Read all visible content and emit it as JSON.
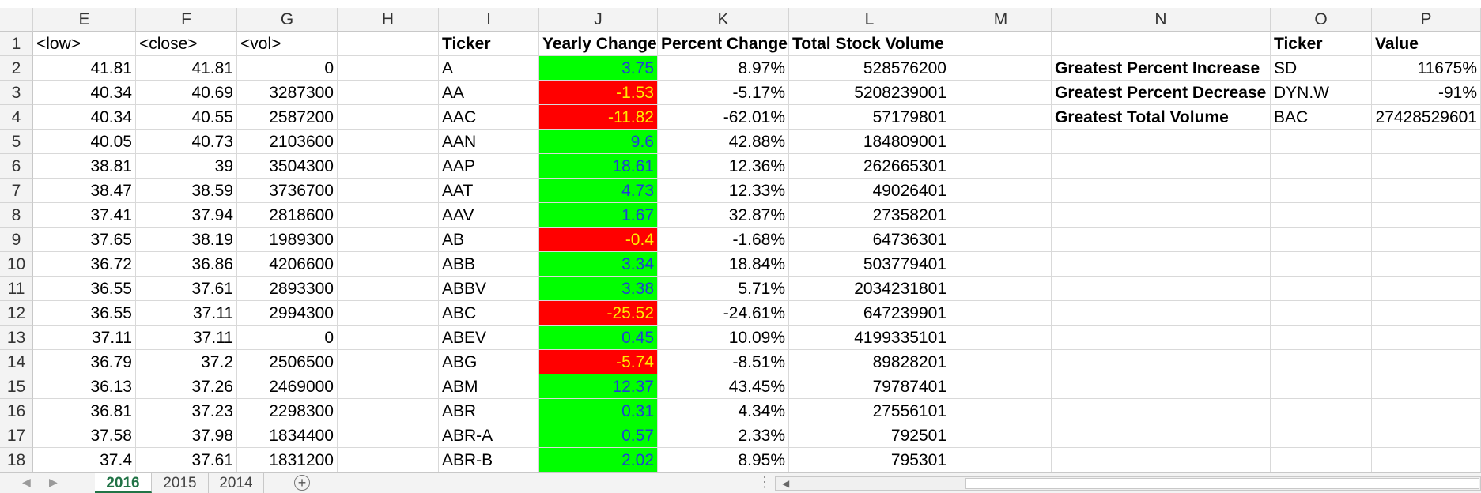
{
  "columns": [
    "E",
    "F",
    "G",
    "H",
    "I",
    "J",
    "K",
    "L",
    "M",
    "N",
    "O",
    "P"
  ],
  "rows": [
    {
      "num": "1",
      "e": "<low>",
      "f": "<close>",
      "g": "<vol>",
      "i": "Ticker",
      "j": "Yearly Change",
      "k": "Percent Change",
      "l": "Total Stock Volume",
      "n": "",
      "o": "Ticker",
      "p": "Value",
      "j_sign": "none"
    },
    {
      "num": "2",
      "e": "41.81",
      "f": "41.81",
      "g": "0",
      "i": "A",
      "j": "3.75",
      "k": "8.97%",
      "l": "528576200",
      "n": "Greatest Percent Increase",
      "o": "SD",
      "p": "11675%",
      "j_sign": "pos"
    },
    {
      "num": "3",
      "e": "40.34",
      "f": "40.69",
      "g": "3287300",
      "i": "AA",
      "j": "-1.53",
      "k": "-5.17%",
      "l": "5208239001",
      "n": "Greatest Percent Decrease",
      "o": "DYN.W",
      "p": "-91%",
      "j_sign": "neg"
    },
    {
      "num": "4",
      "e": "40.34",
      "f": "40.55",
      "g": "2587200",
      "i": "AAC",
      "j": "-11.82",
      "k": "-62.01%",
      "l": "57179801",
      "n": "Greatest Total Volume",
      "o": "BAC",
      "p": "27428529601",
      "j_sign": "neg"
    },
    {
      "num": "5",
      "e": "40.05",
      "f": "40.73",
      "g": "2103600",
      "i": "AAN",
      "j": "9.6",
      "k": "42.88%",
      "l": "184809001",
      "n": "",
      "o": "",
      "p": "",
      "j_sign": "pos"
    },
    {
      "num": "6",
      "e": "38.81",
      "f": "39",
      "g": "3504300",
      "i": "AAP",
      "j": "18.61",
      "k": "12.36%",
      "l": "262665301",
      "n": "",
      "o": "",
      "p": "",
      "j_sign": "pos"
    },
    {
      "num": "7",
      "e": "38.47",
      "f": "38.59",
      "g": "3736700",
      "i": "AAT",
      "j": "4.73",
      "k": "12.33%",
      "l": "49026401",
      "n": "",
      "o": "",
      "p": "",
      "j_sign": "pos"
    },
    {
      "num": "8",
      "e": "37.41",
      "f": "37.94",
      "g": "2818600",
      "i": "AAV",
      "j": "1.67",
      "k": "32.87%",
      "l": "27358201",
      "n": "",
      "o": "",
      "p": "",
      "j_sign": "pos"
    },
    {
      "num": "9",
      "e": "37.65",
      "f": "38.19",
      "g": "1989300",
      "i": "AB",
      "j": "-0.4",
      "k": "-1.68%",
      "l": "64736301",
      "n": "",
      "o": "",
      "p": "",
      "j_sign": "neg"
    },
    {
      "num": "10",
      "e": "36.72",
      "f": "36.86",
      "g": "4206600",
      "i": "ABB",
      "j": "3.34",
      "k": "18.84%",
      "l": "503779401",
      "n": "",
      "o": "",
      "p": "",
      "j_sign": "pos"
    },
    {
      "num": "11",
      "e": "36.55",
      "f": "37.61",
      "g": "2893300",
      "i": "ABBV",
      "j": "3.38",
      "k": "5.71%",
      "l": "2034231801",
      "n": "",
      "o": "",
      "p": "",
      "j_sign": "pos"
    },
    {
      "num": "12",
      "e": "36.55",
      "f": "37.11",
      "g": "2994300",
      "i": "ABC",
      "j": "-25.52",
      "k": "-24.61%",
      "l": "647239901",
      "n": "",
      "o": "",
      "p": "",
      "j_sign": "neg"
    },
    {
      "num": "13",
      "e": "37.11",
      "f": "37.11",
      "g": "0",
      "i": "ABEV",
      "j": "0.45",
      "k": "10.09%",
      "l": "4199335101",
      "n": "",
      "o": "",
      "p": "",
      "j_sign": "pos"
    },
    {
      "num": "14",
      "e": "36.79",
      "f": "37.2",
      "g": "2506500",
      "i": "ABG",
      "j": "-5.74",
      "k": "-8.51%",
      "l": "89828201",
      "n": "",
      "o": "",
      "p": "",
      "j_sign": "neg"
    },
    {
      "num": "15",
      "e": "36.13",
      "f": "37.26",
      "g": "2469000",
      "i": "ABM",
      "j": "12.37",
      "k": "43.45%",
      "l": "79787401",
      "n": "",
      "o": "",
      "p": "",
      "j_sign": "pos"
    },
    {
      "num": "16",
      "e": "36.81",
      "f": "37.23",
      "g": "2298300",
      "i": "ABR",
      "j": "0.31",
      "k": "4.34%",
      "l": "27556101",
      "n": "",
      "o": "",
      "p": "",
      "j_sign": "pos"
    },
    {
      "num": "17",
      "e": "37.58",
      "f": "37.98",
      "g": "1834400",
      "i": "ABR-A",
      "j": "0.57",
      "k": "2.33%",
      "l": "792501",
      "n": "",
      "o": "",
      "p": "",
      "j_sign": "pos"
    },
    {
      "num": "18",
      "e": "37.4",
      "f": "37.61",
      "g": "1831200",
      "i": "ABR-B",
      "j": "2.02",
      "k": "8.95%",
      "l": "795301",
      "n": "",
      "o": "",
      "p": "",
      "j_sign": "pos"
    }
  ],
  "sheet_tabs": [
    {
      "label": "2016",
      "active": true
    },
    {
      "label": "2015",
      "active": false
    },
    {
      "label": "2014",
      "active": false
    }
  ],
  "add_sheet_icon": "plus-circle-icon",
  "colors": {
    "positive_fill": "#00ff00",
    "negative_fill": "#ff0000",
    "active_tab": "#217346"
  }
}
